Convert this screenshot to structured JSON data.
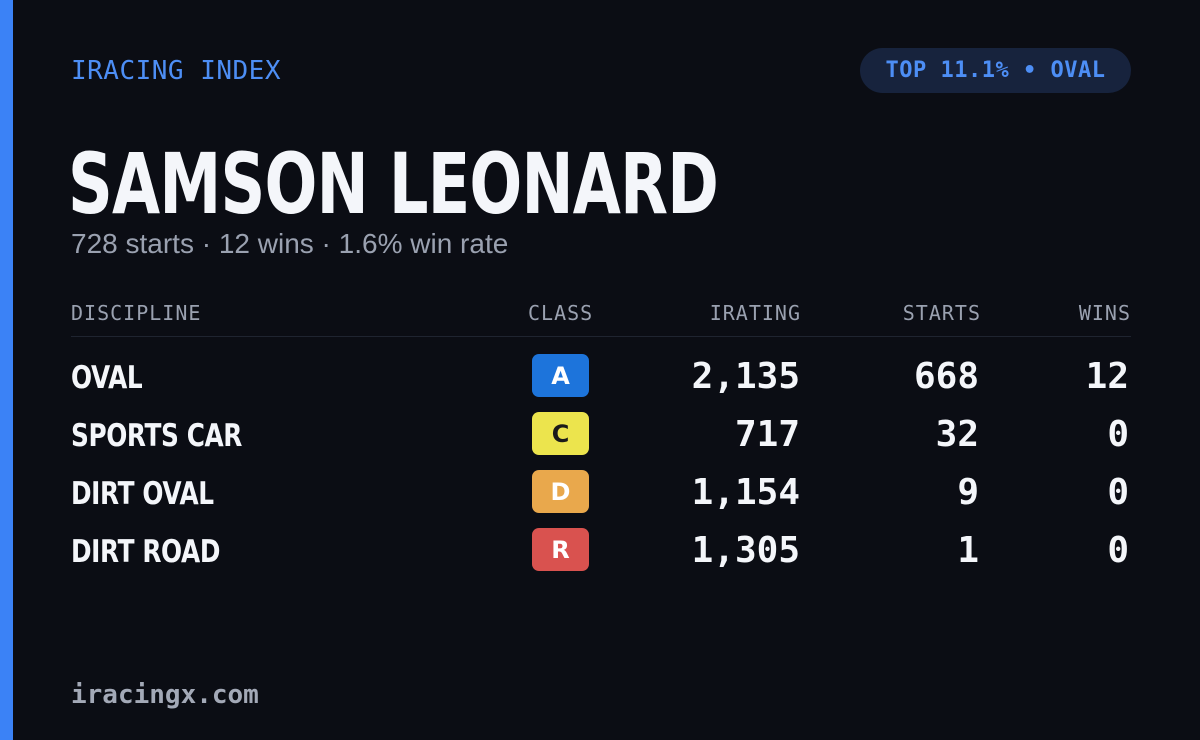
{
  "brand": {
    "label": "IRACING INDEX",
    "accent": "#3b82f6"
  },
  "badge": {
    "prefix": "TOP",
    "value": "11.1%",
    "separator": "•",
    "category": "OVAL"
  },
  "driver": {
    "name": "SAMSON LEONARD",
    "summary": "728 starts · 12 wins · 1.6% win rate"
  },
  "table": {
    "headers": {
      "discipline": "DISCIPLINE",
      "class": "CLASS",
      "irating": "IRATING",
      "starts": "STARTS",
      "wins": "WINS"
    },
    "rows": [
      {
        "discipline": "OVAL",
        "class": "A",
        "class_color": "#1d74db",
        "class_text_color": "#ffffff",
        "irating": "2,135",
        "starts": "668",
        "wins": "12"
      },
      {
        "discipline": "SPORTS CAR",
        "class": "C",
        "class_color": "#ece44d",
        "class_text_color": "#1a1a1a",
        "irating": "717",
        "starts": "32",
        "wins": "0"
      },
      {
        "discipline": "DIRT OVAL",
        "class": "D",
        "class_color": "#e9a84c",
        "class_text_color": "#ffffff",
        "irating": "1,154",
        "starts": "9",
        "wins": "0"
      },
      {
        "discipline": "DIRT ROAD",
        "class": "R",
        "class_color": "#d9524f",
        "class_text_color": "#ffffff",
        "irating": "1,305",
        "starts": "1",
        "wins": "0"
      }
    ]
  },
  "footer": {
    "site": "iracingx.com"
  }
}
